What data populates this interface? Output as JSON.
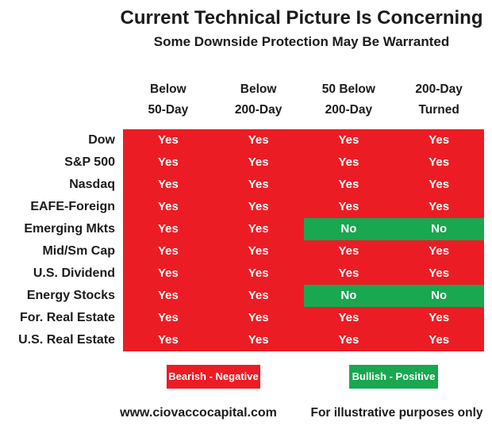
{
  "title": "Current Technical Picture Is Concerning",
  "subtitle": "Some Downside Protection May Be Warranted",
  "legend": {
    "bearish_label": "Bearish - Negative",
    "bullish_label": "Bullish - Positive"
  },
  "footer": {
    "website": "www.ciovaccocapital.com",
    "disclaimer": "For illustrative purposes only"
  },
  "colors": {
    "bearish_red": "#EC1C24",
    "bullish_green": "#19A750",
    "text_black": "#1b1b1b",
    "cell_text": "#FFFFFF"
  },
  "chart_data": {
    "type": "table",
    "title": "Current Technical Picture Is Concerning",
    "subtitle": "Some Downside Protection May Be Warranted",
    "columns": [
      {
        "line1": "Below",
        "line2": "50-Day"
      },
      {
        "line1": "Below",
        "line2": "200-Day"
      },
      {
        "line1": "50 Below",
        "line2": "200-Day"
      },
      {
        "line1": "200-Day",
        "line2": "Turned"
      }
    ],
    "rows": [
      {
        "label": "Dow",
        "values": [
          "Yes",
          "Yes",
          "Yes",
          "Yes"
        ]
      },
      {
        "label": "S&P 500",
        "values": [
          "Yes",
          "Yes",
          "Yes",
          "Yes"
        ]
      },
      {
        "label": "Nasdaq",
        "values": [
          "Yes",
          "Yes",
          "Yes",
          "Yes"
        ]
      },
      {
        "label": "EAFE-Foreign",
        "values": [
          "Yes",
          "Yes",
          "Yes",
          "Yes"
        ]
      },
      {
        "label": "Emerging Mkts",
        "values": [
          "Yes",
          "Yes",
          "No",
          "No"
        ]
      },
      {
        "label": "Mid/Sm Cap",
        "values": [
          "Yes",
          "Yes",
          "Yes",
          "Yes"
        ]
      },
      {
        "label": "U.S. Dividend",
        "values": [
          "Yes",
          "Yes",
          "Yes",
          "Yes"
        ]
      },
      {
        "label": "Energy Stocks",
        "values": [
          "Yes",
          "Yes",
          "No",
          "No"
        ]
      },
      {
        "label": "For. Real Estate",
        "values": [
          "Yes",
          "Yes",
          "Yes",
          "Yes"
        ]
      },
      {
        "label": "U.S. Real Estate",
        "values": [
          "Yes",
          "Yes",
          "Yes",
          "Yes"
        ]
      }
    ],
    "value_semantics": {
      "Yes": "bearish",
      "No": "bullish"
    },
    "legend": [
      "Bearish - Negative",
      "Bullish - Positive"
    ]
  }
}
